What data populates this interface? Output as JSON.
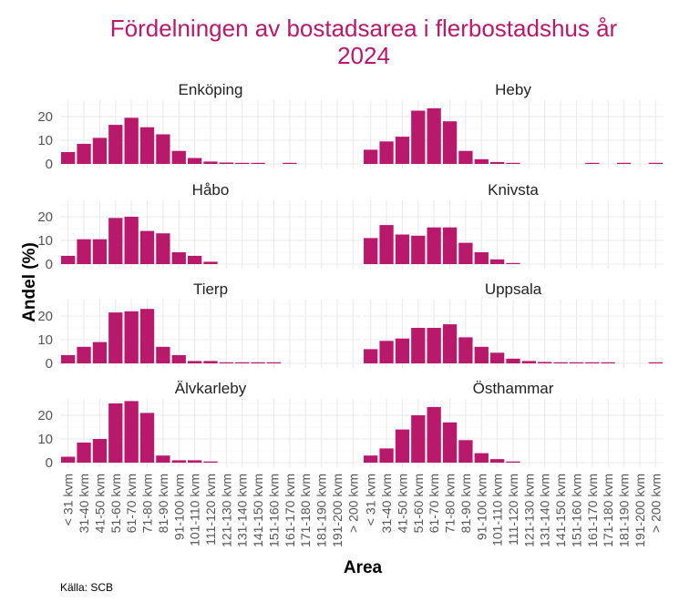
{
  "chart_data": {
    "type": "bar",
    "layout": "facet-grid-4x2",
    "title_lines": [
      "Fördelningen av bostadsarea i flerbostadshus år",
      "2024"
    ],
    "xlabel": "Area",
    "ylabel": "Andel (%)",
    "caption": "Källa: SCB",
    "ylim": [
      0,
      27
    ],
    "yticks": [
      0,
      10,
      20
    ],
    "grid": true,
    "bar_color": "#b8196b",
    "categories": [
      "< 31 kvm",
      "31-40 kvm",
      "41-50 kvm",
      "51-60 kvm",
      "61-70 kvm",
      "71-80 kvm",
      "81-90 kvm",
      "91-100 kvm",
      "101-110 kvm",
      "111-120 kvm",
      "121-130 kvm",
      "131-140 kvm",
      "141-150 kvm",
      "151-160 kvm",
      "161-170 kvm",
      "171-180 kvm",
      "181-190 kvm",
      "191-200 kvm",
      "> 200 kvm"
    ],
    "series": [
      {
        "name": "Enköping",
        "values": [
          5.0,
          8.5,
          11.0,
          16.5,
          19.5,
          15.5,
          12.5,
          5.5,
          2.5,
          1.0,
          0.6,
          0.3,
          0.3,
          null,
          0.3,
          null,
          null,
          null,
          null
        ]
      },
      {
        "name": "Heby",
        "values": [
          6.0,
          9.5,
          11.5,
          22.5,
          23.5,
          18.0,
          5.5,
          2.0,
          0.8,
          0.3,
          null,
          null,
          null,
          null,
          0.2,
          null,
          0.2,
          null,
          0.2
        ]
      },
      {
        "name": "Håbo",
        "values": [
          3.5,
          10.5,
          10.5,
          19.5,
          20.0,
          14.0,
          13.0,
          5.0,
          3.5,
          1.0,
          null,
          null,
          null,
          null,
          null,
          null,
          null,
          null,
          null
        ]
      },
      {
        "name": "Knivsta",
        "values": [
          11.0,
          16.5,
          12.5,
          12.0,
          15.5,
          15.5,
          9.0,
          5.0,
          2.0,
          0.3,
          null,
          null,
          null,
          null,
          null,
          null,
          null,
          null,
          null
        ]
      },
      {
        "name": "Tierp",
        "values": [
          3.5,
          7.0,
          9.0,
          21.5,
          22.0,
          23.0,
          7.0,
          3.5,
          1.0,
          1.0,
          0.2,
          0.2,
          0.2,
          0.2,
          null,
          null,
          null,
          null,
          null
        ]
      },
      {
        "name": "Uppsala",
        "values": [
          6.0,
          9.5,
          10.5,
          15.0,
          15.0,
          16.5,
          11.0,
          7.0,
          4.5,
          2.0,
          1.0,
          0.6,
          0.3,
          0.3,
          0.3,
          0.3,
          null,
          null,
          0.3
        ]
      },
      {
        "name": "Älvkarleby",
        "values": [
          2.5,
          8.5,
          10.0,
          25.0,
          26.0,
          21.0,
          3.0,
          1.0,
          1.0,
          0.5,
          null,
          null,
          null,
          null,
          null,
          null,
          null,
          null,
          null
        ]
      },
      {
        "name": "Östhammar",
        "values": [
          3.0,
          6.0,
          14.0,
          20.0,
          23.5,
          17.0,
          9.5,
          4.0,
          1.5,
          0.5,
          null,
          null,
          null,
          null,
          null,
          null,
          null,
          null,
          null
        ]
      }
    ]
  }
}
